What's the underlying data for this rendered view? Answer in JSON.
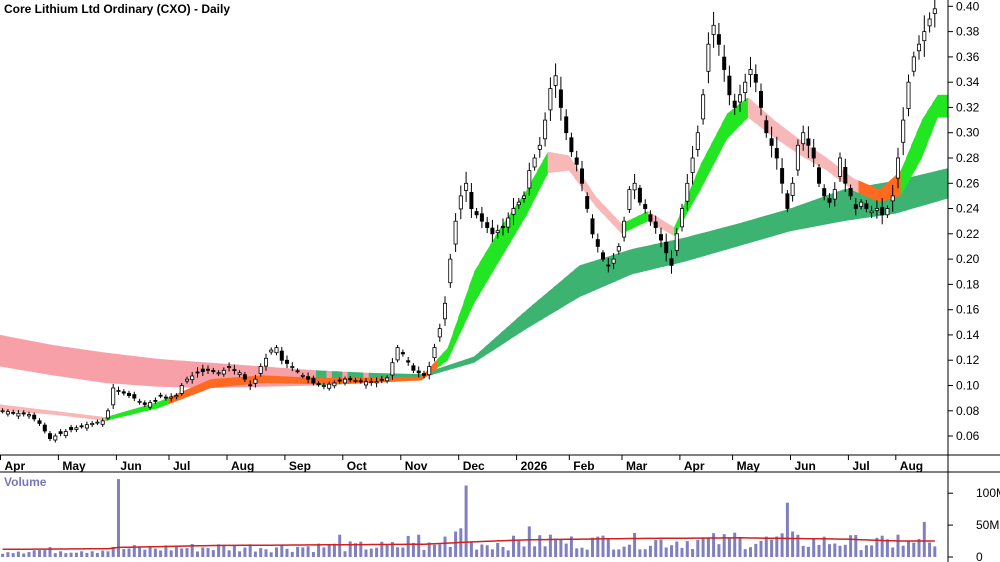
{
  "chart_data": [
    {
      "type": "candlestick",
      "title": "Core Lithium Ltd Ordinary (CXO) - Daily",
      "x_tick_labels": [
        "Apr",
        "May",
        "Jun",
        "Jul",
        "Aug",
        "Sep",
        "Oct",
        "Nov",
        "Dec",
        "2026",
        "Feb",
        "Mar",
        "Apr",
        "May",
        "Jun",
        "Jul",
        "Aug"
      ],
      "y_tick_labels": [
        "0.40",
        "0.38",
        "0.36",
        "0.34",
        "0.32",
        "0.30",
        "0.28",
        "0.26",
        "0.24",
        "0.22",
        "0.20",
        "0.18",
        "0.16",
        "0.14",
        "0.12",
        "0.10",
        "0.08",
        "0.06"
      ],
      "ylim": [
        0.045,
        0.405
      ],
      "grid": false,
      "close_path": [
        [
          0,
          0.08
        ],
        [
          3,
          0.078
        ],
        [
          5,
          0.077
        ],
        [
          7,
          0.07
        ],
        [
          9,
          0.058
        ],
        [
          11,
          0.062
        ],
        [
          13,
          0.065
        ],
        [
          15,
          0.068
        ],
        [
          17,
          0.07
        ],
        [
          19,
          0.072
        ],
        [
          20,
          0.08
        ],
        [
          21,
          0.098
        ],
        [
          23,
          0.094
        ],
        [
          25,
          0.09
        ],
        [
          27,
          0.085
        ],
        [
          29,
          0.088
        ],
        [
          30,
          0.092
        ],
        [
          31,
          0.09
        ],
        [
          33,
          0.092
        ],
        [
          34,
          0.1
        ],
        [
          35,
          0.105
        ],
        [
          37,
          0.11
        ],
        [
          39,
          0.112
        ],
        [
          41,
          0.11
        ],
        [
          42,
          0.112
        ],
        [
          43,
          0.115
        ],
        [
          45,
          0.11
        ],
        [
          47,
          0.1
        ],
        [
          48,
          0.105
        ],
        [
          49,
          0.115
        ],
        [
          51,
          0.128
        ],
        [
          52,
          0.13
        ],
        [
          53,
          0.12
        ],
        [
          55,
          0.115
        ],
        [
          57,
          0.108
        ],
        [
          59,
          0.102
        ],
        [
          61,
          0.1
        ],
        [
          63,
          0.102
        ],
        [
          65,
          0.105
        ],
        [
          67,
          0.104
        ],
        [
          69,
          0.103
        ],
        [
          71,
          0.103
        ],
        [
          73,
          0.106
        ],
        [
          75,
          0.13
        ],
        [
          76,
          0.125
        ],
        [
          78,
          0.112
        ],
        [
          80,
          0.108
        ],
        [
          81,
          0.115
        ],
        [
          82,
          0.13
        ],
        [
          83,
          0.145
        ],
        [
          84,
          0.165
        ],
        [
          85,
          0.2
        ],
        [
          86,
          0.23
        ],
        [
          87,
          0.25
        ],
        [
          88,
          0.26
        ],
        [
          89,
          0.24
        ],
        [
          91,
          0.23
        ],
        [
          93,
          0.22
        ],
        [
          95,
          0.225
        ],
        [
          97,
          0.24
        ],
        [
          99,
          0.25
        ],
        [
          100,
          0.27
        ],
        [
          101,
          0.28
        ],
        [
          102,
          0.29
        ],
        [
          103,
          0.31
        ],
        [
          104,
          0.335
        ],
        [
          105,
          0.345
        ],
        [
          106,
          0.32
        ],
        [
          107,
          0.3
        ],
        [
          108,
          0.285
        ],
        [
          109,
          0.275
        ],
        [
          110,
          0.26
        ],
        [
          111,
          0.24
        ],
        [
          112,
          0.22
        ],
        [
          113,
          0.21
        ],
        [
          114,
          0.2
        ],
        [
          115,
          0.195
        ],
        [
          116,
          0.2
        ],
        [
          117,
          0.21
        ],
        [
          118,
          0.23
        ],
        [
          119,
          0.255
        ],
        [
          120,
          0.26
        ],
        [
          121,
          0.245
        ],
        [
          122,
          0.24
        ],
        [
          123,
          0.23
        ],
        [
          124,
          0.225
        ],
        [
          125,
          0.215
        ],
        [
          126,
          0.205
        ],
        [
          127,
          0.195
        ],
        [
          128,
          0.22
        ],
        [
          129,
          0.24
        ],
        [
          130,
          0.26
        ],
        [
          131,
          0.28
        ],
        [
          132,
          0.3
        ],
        [
          133,
          0.33
        ],
        [
          134,
          0.37
        ],
        [
          135,
          0.385
        ],
        [
          136,
          0.37
        ],
        [
          137,
          0.35
        ],
        [
          138,
          0.33
        ],
        [
          139,
          0.32
        ],
        [
          140,
          0.33
        ],
        [
          141,
          0.34
        ],
        [
          142,
          0.35
        ],
        [
          143,
          0.34
        ],
        [
          144,
          0.32
        ],
        [
          145,
          0.3
        ],
        [
          146,
          0.29
        ],
        [
          147,
          0.28
        ],
        [
          148,
          0.26
        ],
        [
          149,
          0.24
        ],
        [
          150,
          0.26
        ],
        [
          151,
          0.29
        ],
        [
          152,
          0.3
        ],
        [
          153,
          0.29
        ],
        [
          154,
          0.28
        ],
        [
          155,
          0.26
        ],
        [
          156,
          0.25
        ],
        [
          157,
          0.245
        ],
        [
          158,
          0.255
        ],
        [
          159,
          0.28
        ],
        [
          160,
          0.26
        ],
        [
          161,
          0.25
        ],
        [
          162,
          0.24
        ],
        [
          163,
          0.245
        ],
        [
          164,
          0.24
        ],
        [
          165,
          0.238
        ],
        [
          166,
          0.24
        ],
        [
          167,
          0.235
        ],
        [
          168,
          0.24
        ],
        [
          169,
          0.25
        ],
        [
          170,
          0.28
        ],
        [
          171,
          0.31
        ],
        [
          172,
          0.34
        ],
        [
          173,
          0.36
        ],
        [
          174,
          0.37
        ],
        [
          175,
          0.38
        ],
        [
          176,
          0.39
        ],
        [
          177,
          0.398
        ]
      ],
      "ribbons": [
        {
          "role": "long-term",
          "rising_color": "#3cb371",
          "falling_color": "#f8a0a8",
          "upper": [
            [
              0,
              0.14
            ],
            [
              10,
              0.132
            ],
            [
              20,
              0.126
            ],
            [
              30,
              0.121
            ],
            [
              40,
              0.118
            ],
            [
              50,
              0.115
            ],
            [
              60,
              0.112
            ],
            [
              70,
              0.11
            ],
            [
              80,
              0.109
            ],
            [
              90,
              0.123
            ],
            [
              100,
              0.16
            ],
            [
              110,
              0.195
            ],
            [
              120,
              0.208
            ],
            [
              130,
              0.217
            ],
            [
              140,
              0.228
            ],
            [
              150,
              0.24
            ],
            [
              160,
              0.255
            ],
            [
              170,
              0.262
            ],
            [
              180,
              0.272
            ]
          ],
          "lower": [
            [
              0,
              0.115
            ],
            [
              10,
              0.108
            ],
            [
              20,
              0.102
            ],
            [
              30,
              0.099
            ],
            [
              40,
              0.098
            ],
            [
              50,
              0.099
            ],
            [
              60,
              0.1
            ],
            [
              70,
              0.102
            ],
            [
              80,
              0.106
            ],
            [
              90,
              0.118
            ],
            [
              100,
              0.145
            ],
            [
              110,
              0.17
            ],
            [
              120,
              0.188
            ],
            [
              130,
              0.198
            ],
            [
              140,
              0.21
            ],
            [
              150,
              0.222
            ],
            [
              160,
              0.23
            ],
            [
              170,
              0.236
            ],
            [
              180,
              0.248
            ]
          ]
        },
        {
          "role": "short-term",
          "rising_color": "#22e622",
          "falling_color": "#f8b8b8",
          "upper": [
            [
              0,
              0.085
            ],
            [
              10,
              0.08
            ],
            [
              20,
              0.075
            ],
            [
              30,
              0.087
            ],
            [
              40,
              0.105
            ],
            [
              50,
              0.108
            ],
            [
              60,
              0.106
            ],
            [
              70,
              0.106
            ],
            [
              80,
              0.107
            ],
            [
              85,
              0.13
            ],
            [
              90,
              0.19
            ],
            [
              95,
              0.225
            ],
            [
              100,
              0.255
            ],
            [
              104,
              0.285
            ],
            [
              108,
              0.282
            ],
            [
              113,
              0.25
            ],
            [
              118,
              0.228
            ],
            [
              123,
              0.238
            ],
            [
              128,
              0.225
            ],
            [
              133,
              0.275
            ],
            [
              138,
              0.315
            ],
            [
              142,
              0.328
            ],
            [
              147,
              0.31
            ],
            [
              152,
              0.294
            ],
            [
              157,
              0.28
            ],
            [
              162,
              0.264
            ],
            [
              167,
              0.255
            ],
            [
              171,
              0.27
            ],
            [
              175,
              0.31
            ],
            [
              178,
              0.33
            ]
          ],
          "lower": [
            [
              0,
              0.08
            ],
            [
              10,
              0.077
            ],
            [
              20,
              0.072
            ],
            [
              30,
              0.082
            ],
            [
              40,
              0.098
            ],
            [
              50,
              0.102
            ],
            [
              60,
              0.101
            ],
            [
              70,
              0.102
            ],
            [
              80,
              0.104
            ],
            [
              85,
              0.12
            ],
            [
              90,
              0.165
            ],
            [
              95,
              0.2
            ],
            [
              100,
              0.235
            ],
            [
              104,
              0.268
            ],
            [
              108,
              0.27
            ],
            [
              113,
              0.242
            ],
            [
              118,
              0.22
            ],
            [
              123,
              0.23
            ],
            [
              128,
              0.218
            ],
            [
              133,
              0.255
            ],
            [
              138,
              0.295
            ],
            [
              142,
              0.312
            ],
            [
              147,
              0.296
            ],
            [
              152,
              0.282
            ],
            [
              157,
              0.27
            ],
            [
              162,
              0.254
            ],
            [
              167,
              0.245
            ],
            [
              171,
              0.25
            ],
            [
              175,
              0.28
            ],
            [
              178,
              0.312
            ]
          ]
        }
      ]
    },
    {
      "type": "bar",
      "title": "Volume",
      "y_tick_labels": [
        "100M",
        "50M",
        "0"
      ],
      "ylim": [
        0,
        130
      ],
      "average_line_color": "#d02020",
      "bar_color": "#8080c0",
      "spikes": [
        [
          22,
          122
        ],
        [
          64,
          35
        ],
        [
          77,
          33
        ],
        [
          79,
          35
        ],
        [
          84,
          32
        ],
        [
          86,
          40
        ],
        [
          87,
          45
        ],
        [
          88,
          112
        ],
        [
          100,
          48
        ],
        [
          104,
          35
        ],
        [
          113,
          32
        ],
        [
          139,
          38
        ],
        [
          149,
          85
        ],
        [
          150,
          40
        ],
        [
          170,
          35
        ],
        [
          175,
          55
        ]
      ],
      "average": [
        [
          0,
          12
        ],
        [
          20,
          13
        ],
        [
          22,
          15
        ],
        [
          40,
          18
        ],
        [
          60,
          19
        ],
        [
          80,
          20
        ],
        [
          90,
          24
        ],
        [
          100,
          27
        ],
        [
          120,
          29
        ],
        [
          140,
          30
        ],
        [
          160,
          28
        ],
        [
          170,
          25
        ],
        [
          180,
          25
        ]
      ]
    }
  ]
}
